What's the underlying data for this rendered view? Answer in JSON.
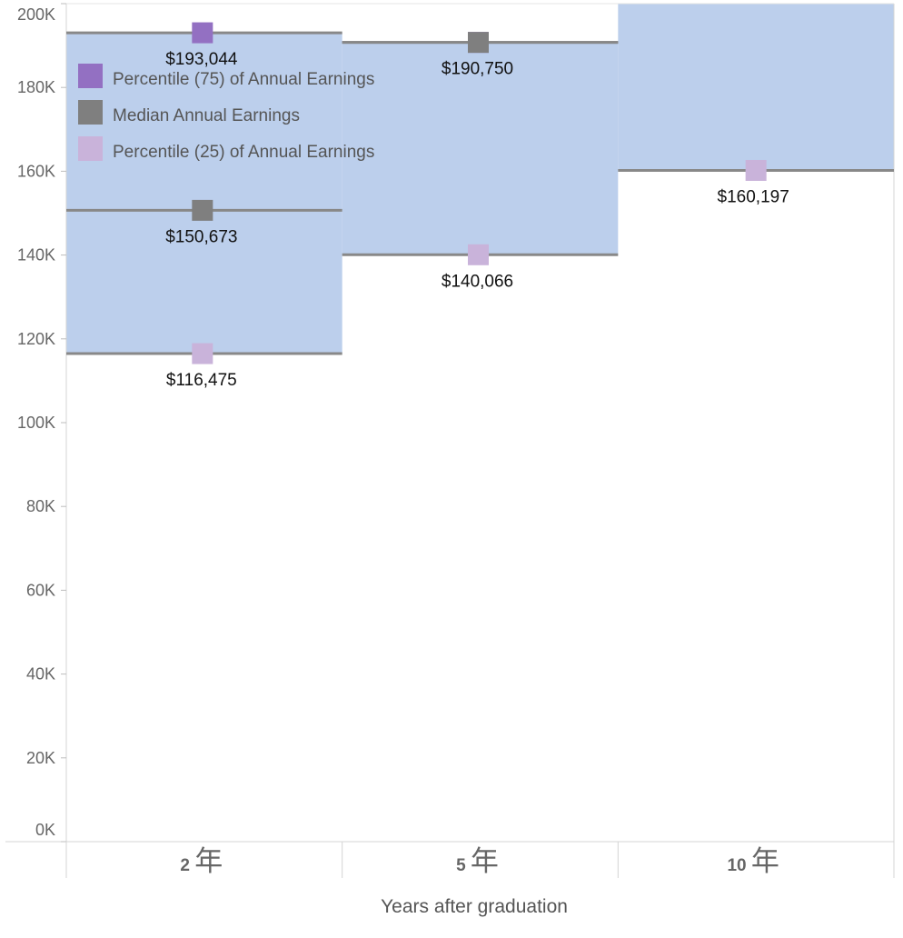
{
  "chart_data": {
    "type": "area",
    "categories": [
      {
        "num": "2",
        "suffix": "年"
      },
      {
        "num": "5",
        "suffix": "年"
      },
      {
        "num": "10",
        "suffix": "年"
      }
    ],
    "xlabel": "Years after graduation",
    "ylabel": "",
    "ylim": [
      0,
      200000
    ],
    "yticks": [
      0,
      20000,
      40000,
      60000,
      80000,
      100000,
      120000,
      140000,
      160000,
      180000,
      200000
    ],
    "ytick_labels": [
      "0K",
      "20K",
      "40K",
      "60K",
      "80K",
      "100K",
      "120K",
      "140K",
      "160K",
      "180K",
      "200K"
    ],
    "grid": false,
    "legend_position": "top-left",
    "band_color": "#bccfec",
    "line_color": "#888888",
    "series": [
      {
        "key": "p75",
        "name": "Percentile (75) of Annual Earnings",
        "color": "#9370c2",
        "values": [
          193044,
          190750,
          null
        ],
        "labels": [
          "$193,044",
          "$190,750",
          ""
        ]
      },
      {
        "key": "median",
        "name": "Median Annual Earnings",
        "color": "#7f7f7f",
        "values": [
          150673,
          190750,
          null
        ],
        "labels": [
          "$150,673",
          "",
          ""
        ]
      },
      {
        "key": "p25",
        "name": "Percentile (25) of Annual Earnings",
        "color": "#c9b3da",
        "values": [
          116475,
          140066,
          160197
        ],
        "labels": [
          "$116,475",
          "$140,066",
          "$160,197"
        ]
      }
    ]
  }
}
